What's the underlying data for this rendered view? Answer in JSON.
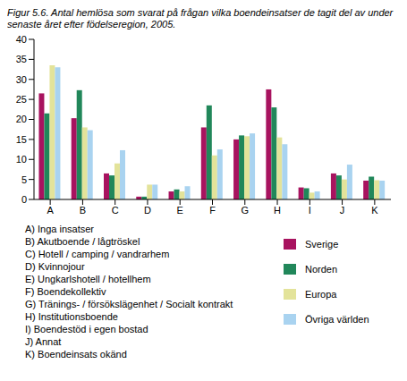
{
  "chart_data": {
    "type": "bar",
    "title": "Figur 5.6. Antal hemlösa som svarat på frågan vilka boendeinsatser de tagit del av under senaste året efter födelseregion, 2005.",
    "categories": [
      "A",
      "B",
      "C",
      "D",
      "E",
      "F",
      "G",
      "H",
      "I",
      "J",
      "K"
    ],
    "category_labels": [
      "A) Inga insatser",
      "B) Akutboende / lågtröskel",
      "C) Hotell / camping / vandrarhem",
      "D) Kvinnojour",
      "E) Ungkarlshotell / hotellhem",
      "F) Boendekollektiv",
      "G) Tränings- / försökslägenhet / Socialt kontrakt",
      "H) Institutionsboende",
      "I) Boendestöd i egen bostad",
      "J) Annat",
      "K) Boendeinsats okänd"
    ],
    "series": [
      {
        "name": "Sverige",
        "color": "#a8135f",
        "values": [
          26.5,
          20.3,
          6.5,
          0.7,
          2,
          18,
          15,
          27.5,
          3,
          6.5,
          4.7
        ]
      },
      {
        "name": "Norden",
        "color": "#21875a",
        "values": [
          21.5,
          27.3,
          6,
          0.7,
          2.5,
          23.5,
          16,
          23,
          2.8,
          6,
          5.7
        ]
      },
      {
        "name": "Europa",
        "color": "#e3e39a",
        "values": [
          33.5,
          18,
          9,
          3.7,
          2,
          11,
          15.8,
          15.5,
          1.7,
          5,
          4.8
        ]
      },
      {
        "name": "Övriga världen",
        "color": "#a9d3f0",
        "values": [
          33,
          17.3,
          12.3,
          3.7,
          3.3,
          12.5,
          16.5,
          13.8,
          2,
          8.7,
          4.7
        ]
      }
    ],
    "ylim": [
      0,
      40
    ],
    "yticks": [
      0,
      5,
      10,
      15,
      20,
      25,
      30,
      35,
      40
    ],
    "grid": false
  }
}
